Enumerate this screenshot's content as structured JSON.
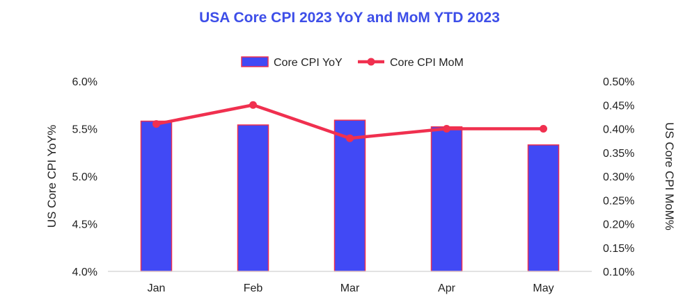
{
  "chart_data": {
    "type": "bar+line",
    "title": "USA Core CPI 2023 YoY and MoM YTD 2023",
    "categories": [
      "Jan",
      "Feb",
      "Mar",
      "Apr",
      "May"
    ],
    "series": [
      {
        "name": "Core CPI YoY",
        "type": "bar",
        "axis": "left",
        "values": [
          5.58,
          5.54,
          5.59,
          5.52,
          5.33
        ]
      },
      {
        "name": "Core CPI MoM",
        "type": "line",
        "axis": "right",
        "values": [
          0.41,
          0.45,
          0.38,
          0.4,
          0.4
        ]
      }
    ],
    "y_left": {
      "label": "US Core CPI YoY%",
      "ylim": [
        4.0,
        6.0
      ],
      "ticks": [
        "4.0%",
        "4.5%",
        "5.0%",
        "5.5%",
        "6.0%"
      ]
    },
    "y_right": {
      "label": "US Core CPI MoM%",
      "ylim": [
        0.1,
        0.5
      ],
      "ticks": [
        "0.10%",
        "0.15%",
        "0.20%",
        "0.25%",
        "0.30%",
        "0.35%",
        "0.40%",
        "0.45%",
        "0.50%"
      ]
    },
    "legend_position": "top",
    "grid": false,
    "colors": {
      "title": "#3d4ee8",
      "bar_fill": "#4149f5",
      "bar_stroke": "#f0304f",
      "line": "#f0304f",
      "axis": "#d9d9d9"
    }
  }
}
